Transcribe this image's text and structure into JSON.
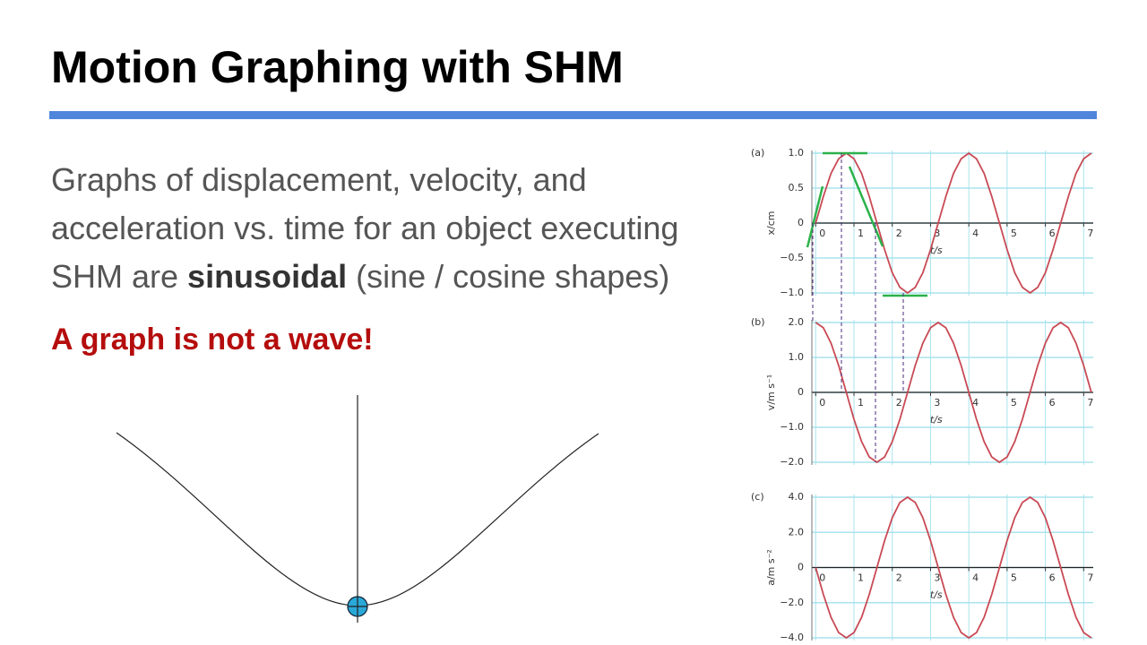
{
  "title": "Motion Graphing with SHM",
  "body": {
    "line1": "Graphs of displacement, velocity, and",
    "line2": "acceleration vs. time for an object executing",
    "line3": [
      "SHM are ",
      "sinusoidal",
      " (sine / cosine shapes)"
    ]
  },
  "note": "A graph is not a wave!",
  "chart_data": [
    {
      "type": "line",
      "label": "(a)",
      "ylabel": "x/cm",
      "xlabel": "t/s",
      "color": "#c84a55",
      "grid": true,
      "x": [
        0,
        0.2,
        0.4,
        0.6,
        0.8,
        1,
        1.2,
        1.4,
        1.6,
        1.8,
        2,
        2.2,
        2.4,
        2.6,
        2.8,
        3,
        3.2,
        3.4,
        3.6,
        3.8,
        4,
        4.2,
        4.4,
        4.6,
        4.8,
        5,
        5.2,
        5.4,
        5.6,
        5.8,
        6,
        6.2,
        6.4,
        6.6,
        6.8,
        7,
        7.2
      ],
      "values": [
        0,
        0.38,
        0.71,
        0.92,
        1,
        0.92,
        0.71,
        0.38,
        0,
        -0.38,
        -0.71,
        -0.92,
        -1,
        -0.92,
        -0.71,
        -0.38,
        0,
        0.38,
        0.71,
        0.92,
        1,
        0.92,
        0.71,
        0.38,
        0,
        -0.38,
        -0.71,
        -0.92,
        -1,
        -0.92,
        -0.71,
        -0.38,
        0,
        0.38,
        0.71,
        0.92,
        1
      ],
      "xlim": [
        -0.1,
        7.25
      ],
      "xticks": [
        0,
        1,
        2,
        3,
        4,
        5,
        6,
        7
      ],
      "ylim": [
        -1,
        1
      ],
      "yticks": [
        {
          "value": 1,
          "label": "1.0"
        },
        0.5,
        0,
        {
          "value": -0.5,
          "label": "−0.5"
        },
        {
          "value": -1,
          "label": "−1.0"
        }
      ]
    },
    {
      "type": "line",
      "label": "(b)",
      "ylabel": "v/m s⁻¹",
      "xlabel": "t/s",
      "color": "#c84a55",
      "grid": true,
      "x": [
        0,
        0.2,
        0.4,
        0.6,
        0.8,
        1,
        1.2,
        1.4,
        1.6,
        1.8,
        2,
        2.2,
        2.4,
        2.6,
        2.8,
        3,
        3.2,
        3.4,
        3.6,
        3.8,
        4,
        4.2,
        4.4,
        4.6,
        4.8,
        5,
        5.2,
        5.4,
        5.6,
        5.8,
        6,
        6.2,
        6.4,
        6.6,
        6.8,
        7,
        7.2
      ],
      "values": [
        2,
        1.85,
        1.41,
        0.77,
        0,
        -0.77,
        -1.41,
        -1.85,
        -2,
        -1.85,
        -1.41,
        -0.77,
        0,
        0.77,
        1.41,
        1.85,
        2,
        1.85,
        1.41,
        0.77,
        0,
        -0.77,
        -1.41,
        -1.85,
        -2,
        -1.85,
        -1.41,
        -0.77,
        0,
        0.77,
        1.41,
        1.85,
        2,
        1.85,
        1.41,
        0.77,
        0
      ],
      "xlim": [
        -0.1,
        7.25
      ],
      "xticks": [
        0,
        1,
        2,
        3,
        4,
        5,
        6,
        7
      ],
      "ylim": [
        -2,
        2
      ],
      "yticks": [
        {
          "value": 2,
          "label": "2.0"
        },
        {
          "value": 1,
          "label": "1.0"
        },
        0,
        {
          "value": -1,
          "label": "−1.0"
        },
        {
          "value": -2,
          "label": "−2.0"
        }
      ]
    },
    {
      "type": "line",
      "label": "(c)",
      "ylabel": "a/m s⁻²",
      "xlabel": "t/s",
      "color": "#c84a55",
      "grid": true,
      "x": [
        0,
        0.2,
        0.4,
        0.6,
        0.8,
        1,
        1.2,
        1.4,
        1.6,
        1.8,
        2,
        2.2,
        2.4,
        2.6,
        2.8,
        3,
        3.2,
        3.4,
        3.6,
        3.8,
        4,
        4.2,
        4.4,
        4.6,
        4.8,
        5,
        5.2,
        5.4,
        5.6,
        5.8,
        6,
        6.2,
        6.4,
        6.6,
        6.8,
        7,
        7.2
      ],
      "values": [
        0,
        -1.53,
        -2.83,
        -3.7,
        -4,
        -3.7,
        -2.83,
        -1.53,
        0,
        1.53,
        2.83,
        3.7,
        4,
        3.7,
        2.83,
        1.53,
        0,
        -1.53,
        -2.83,
        -3.7,
        -4,
        -3.7,
        -2.83,
        -1.53,
        0,
        1.53,
        2.83,
        3.7,
        4,
        3.7,
        2.83,
        1.53,
        0,
        -1.53,
        -2.83,
        -3.7,
        -4
      ],
      "xlim": [
        -0.1,
        7.25
      ],
      "xticks": [
        0,
        1,
        2,
        3,
        4,
        5,
        6,
        7
      ],
      "ylim": [
        -4,
        4
      ],
      "yticks": [
        {
          "value": 4,
          "label": "4.0"
        },
        {
          "value": 2,
          "label": "2.0"
        },
        0,
        {
          "value": -2,
          "label": "−2.0"
        },
        {
          "value": -4,
          "label": "−4.0"
        }
      ]
    }
  ]
}
